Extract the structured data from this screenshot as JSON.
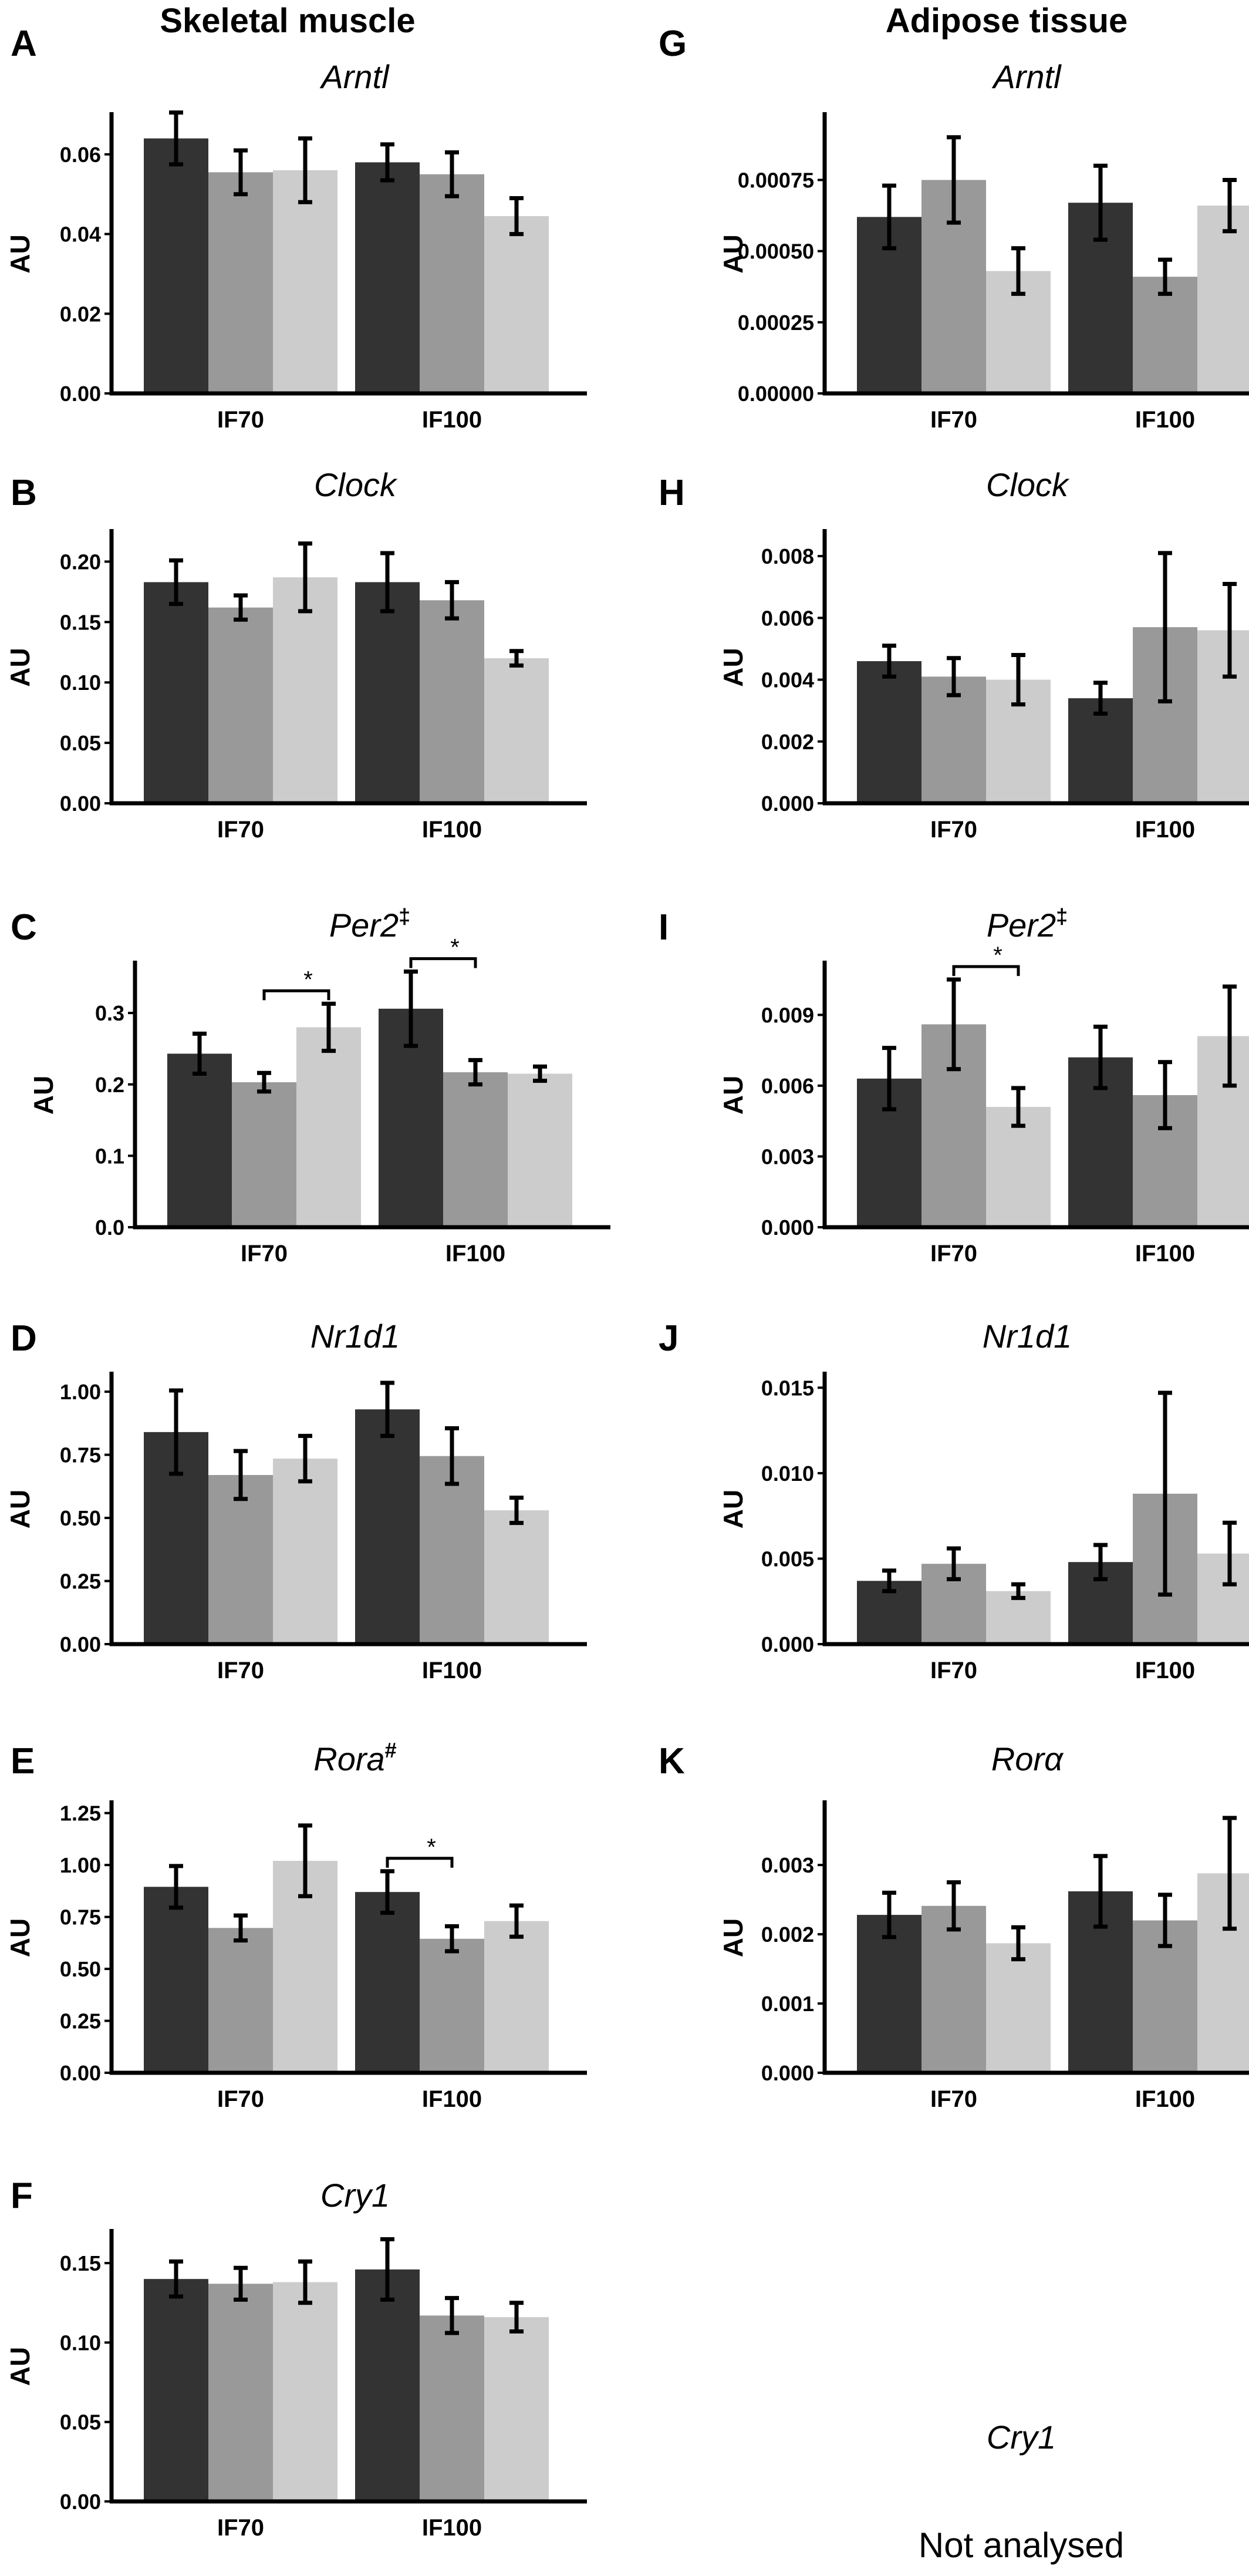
{
  "headings": {
    "left": "Skeletal muscle",
    "right": "Adipose tissue"
  },
  "not_analysed": {
    "title": "Cry1",
    "text": "Not analysed"
  },
  "colors": {
    "group1": "#333333",
    "group2": "#999999",
    "group3": "#cccccc"
  },
  "chart_data": [
    {
      "panel": "A",
      "title": "Arntl",
      "title_suffix": "",
      "type": "bar",
      "ylabel": "AU",
      "categories": [
        "IF70",
        "IF100"
      ],
      "yticks": [
        "0.00",
        "0.02",
        "0.04",
        "0.06"
      ],
      "ylim": [
        0,
        0.07
      ],
      "values": [
        [
          0.064,
          0.0555,
          0.056
        ],
        [
          0.058,
          0.055,
          0.0445
        ]
      ],
      "errors": [
        [
          0.0065,
          0.0055,
          0.008
        ],
        [
          0.0045,
          0.0055,
          0.0045
        ]
      ],
      "sig": []
    },
    {
      "panel": "B",
      "title": "Clock",
      "title_suffix": "",
      "type": "bar",
      "ylabel": "AU",
      "categories": [
        "IF70",
        "IF100"
      ],
      "yticks": [
        "0.00",
        "0.05",
        "0.10",
        "0.15",
        "0.20"
      ],
      "ylim": [
        0,
        0.225
      ],
      "values": [
        [
          0.183,
          0.162,
          0.187
        ],
        [
          0.183,
          0.168,
          0.12
        ]
      ],
      "errors": [
        [
          0.018,
          0.01,
          0.028
        ],
        [
          0.024,
          0.015,
          0.006
        ]
      ],
      "sig": []
    },
    {
      "panel": "C",
      "title": "Per2",
      "title_suffix": "‡",
      "type": "bar",
      "ylabel": "AU",
      "categories": [
        "IF70",
        "IF100"
      ],
      "yticks": [
        "0.0",
        "0.1",
        "0.2",
        "0.3"
      ],
      "ylim": [
        0,
        0.37
      ],
      "values": [
        [
          0.243,
          0.203,
          0.28
        ],
        [
          0.306,
          0.217,
          0.215
        ]
      ],
      "errors": [
        [
          0.028,
          0.013,
          0.033
        ],
        [
          0.052,
          0.017,
          0.01
        ]
      ],
      "sig": [
        {
          "group": 0,
          "from": 1,
          "to": 2,
          "label": "*"
        },
        {
          "group": 1,
          "from": 0,
          "to": 1,
          "label": "*"
        }
      ]
    },
    {
      "panel": "D",
      "title": "Nr1d1",
      "title_suffix": "",
      "type": "bar",
      "ylabel": "AU",
      "categories": [
        "IF70",
        "IF100"
      ],
      "yticks": [
        "0.00",
        "0.25",
        "0.50",
        "0.75",
        "1.00"
      ],
      "ylim": [
        0,
        1.07
      ],
      "values": [
        [
          0.84,
          0.67,
          0.735
        ],
        [
          0.93,
          0.745,
          0.53
        ]
      ],
      "errors": [
        [
          0.165,
          0.095,
          0.09
        ],
        [
          0.105,
          0.11,
          0.05
        ]
      ],
      "sig": []
    },
    {
      "panel": "E",
      "title": "Rora",
      "title_suffix": "#",
      "type": "bar",
      "ylabel": "AU",
      "categories": [
        "IF70",
        "IF100"
      ],
      "yticks": [
        "0.00",
        "0.25",
        "0.50",
        "0.75",
        "1.00",
        "1.25"
      ],
      "ylim": [
        0,
        1.3
      ],
      "values": [
        [
          0.895,
          0.697,
          1.02
        ],
        [
          0.87,
          0.645,
          0.73
        ]
      ],
      "errors": [
        [
          0.1,
          0.06,
          0.17
        ],
        [
          0.1,
          0.06,
          0.075
        ]
      ],
      "sig": [
        {
          "group": 1,
          "from": 0,
          "to": 1,
          "label": "*"
        }
      ]
    },
    {
      "panel": "F",
      "title": "Cry1",
      "title_suffix": "",
      "type": "bar",
      "ylabel": "AU",
      "categories": [
        "IF70",
        "IF100"
      ],
      "yticks": [
        "0.00",
        "0.05",
        "0.10",
        "0.15"
      ],
      "ylim": [
        0,
        0.17
      ],
      "values": [
        [
          0.14,
          0.137,
          0.138
        ],
        [
          0.146,
          0.117,
          0.116
        ]
      ],
      "errors": [
        [
          0.011,
          0.01,
          0.013
        ],
        [
          0.019,
          0.011,
          0.009
        ]
      ],
      "sig": []
    },
    {
      "panel": "G",
      "title": "Arntl",
      "title_suffix": "",
      "type": "bar",
      "ylabel": "AU",
      "categories": [
        "IF70",
        "IF100"
      ],
      "yticks": [
        "0.00000",
        "0.00025",
        "0.00050",
        "0.00075"
      ],
      "ylim": [
        0,
        0.00098
      ],
      "values": [
        [
          0.00062,
          0.00075,
          0.00043
        ],
        [
          0.00067,
          0.00041,
          0.00066
        ]
      ],
      "errors": [
        [
          0.00011,
          0.00015,
          8e-05
        ],
        [
          0.00013,
          6e-05,
          9e-05
        ]
      ],
      "sig": []
    },
    {
      "panel": "H",
      "title": "Clock",
      "title_suffix": "",
      "type": "bar",
      "ylabel": "AU",
      "categories": [
        "IF70",
        "IF100"
      ],
      "yticks": [
        "0.000",
        "0.002",
        "0.004",
        "0.006",
        "0.008"
      ],
      "ylim": [
        0,
        0.0088
      ],
      "values": [
        [
          0.0046,
          0.0041,
          0.004
        ],
        [
          0.0034,
          0.0057,
          0.0056
        ]
      ],
      "errors": [
        [
          0.0005,
          0.0006,
          0.0008
        ],
        [
          0.0005,
          0.0024,
          0.0015
        ]
      ],
      "sig": []
    },
    {
      "panel": "I",
      "title": "Per2",
      "title_suffix": "‡",
      "type": "bar",
      "ylabel": "AU",
      "categories": [
        "IF70",
        "IF100"
      ],
      "yticks": [
        "0.000",
        "0.003",
        "0.006",
        "0.009"
      ],
      "ylim": [
        0,
        0.0112
      ],
      "values": [
        [
          0.0063,
          0.0086,
          0.0051
        ],
        [
          0.0072,
          0.0056,
          0.0081
        ]
      ],
      "errors": [
        [
          0.0013,
          0.0019,
          0.0008
        ],
        [
          0.0013,
          0.0014,
          0.0021
        ]
      ],
      "sig": [
        {
          "group": 0,
          "from": 1,
          "to": 2,
          "label": "*"
        }
      ]
    },
    {
      "panel": "J",
      "title": "Nr1d1",
      "title_suffix": "",
      "type": "bar",
      "ylabel": "AU",
      "categories": [
        "IF70",
        "IF100"
      ],
      "yticks": [
        "0.000",
        "0.005",
        "0.010",
        "0.015"
      ],
      "ylim": [
        0,
        0.0158
      ],
      "values": [
        [
          0.0037,
          0.0047,
          0.0031
        ],
        [
          0.0048,
          0.0088,
          0.0053
        ]
      ],
      "errors": [
        [
          0.0006,
          0.0009,
          0.0004
        ],
        [
          0.001,
          0.0059,
          0.0018
        ]
      ],
      "sig": []
    },
    {
      "panel": "K",
      "title": "Rorα",
      "title_suffix": "",
      "type": "bar",
      "ylabel": "AU",
      "categories": [
        "IF70",
        "IF100"
      ],
      "yticks": [
        "0.000",
        "0.001",
        "0.002",
        "0.003"
      ],
      "ylim": [
        0,
        0.0039
      ],
      "values": [
        [
          0.00228,
          0.00241,
          0.00187
        ],
        [
          0.00262,
          0.0022,
          0.00288
        ]
      ],
      "errors": [
        [
          0.00032,
          0.00034,
          0.00023
        ],
        [
          0.00051,
          0.00037,
          0.0008
        ]
      ],
      "sig": []
    }
  ]
}
